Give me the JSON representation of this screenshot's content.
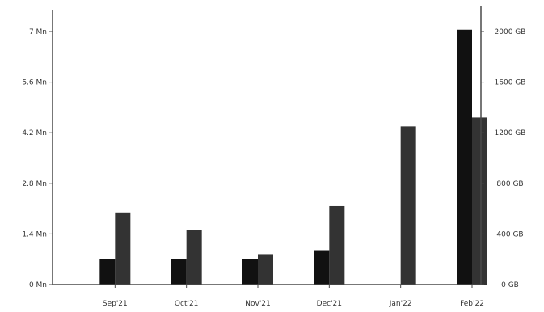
{
  "chart_data": {
    "type": "bar",
    "title": "",
    "xlabel": "",
    "ylabel": "",
    "y2label": "",
    "categories": [
      "Sep'21",
      "Oct'21",
      "Nov'21",
      "Dec'21",
      "Jan'22",
      "Feb'22"
    ],
    "series": [
      {
        "axis": "left",
        "color": "#111111",
        "values": [
          0.7,
          0.7,
          0.7,
          0.95,
          0,
          7.05
        ]
      },
      {
        "axis": "right",
        "color": "#333333",
        "values": [
          570,
          430,
          240,
          620,
          1250,
          1320
        ]
      }
    ],
    "left_axis": {
      "ylim": [
        0,
        7.6
      ],
      "ticks": [
        {
          "value": 0,
          "label": "0 Mn"
        },
        {
          "value": 1.4,
          "label": "1.4 Mn"
        },
        {
          "value": 2.8,
          "label": "2.8 Mn"
        },
        {
          "value": 4.2,
          "label": "4.2 Mn"
        },
        {
          "value": 5.6,
          "label": "5.6 Mn"
        },
        {
          "value": 7.0,
          "label": "7 Mn"
        }
      ]
    },
    "right_axis": {
      "ylim": [
        0,
        2000
      ],
      "ticks": [
        {
          "value": 0,
          "label": "0 GB"
        },
        {
          "value": 400,
          "label": "400 GB"
        },
        {
          "value": 800,
          "label": "800 GB"
        },
        {
          "value": 1200,
          "label": "1200 GB"
        },
        {
          "value": 1600,
          "label": "1600 GB"
        },
        {
          "value": 2000,
          "label": "2000 GB"
        }
      ]
    },
    "grid": false,
    "legend": "none"
  }
}
